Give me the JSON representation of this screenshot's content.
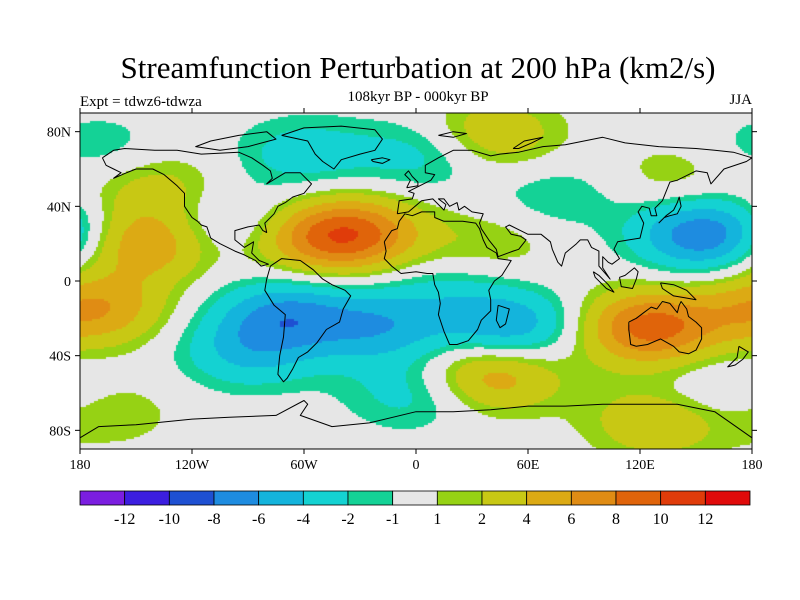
{
  "title": "Streamfunction Perturbation at 200 hPa (km2/s)",
  "subtitle": "108kyr BP - 000kyr BP",
  "experiment": "Expt = tdwz6-tdwza",
  "season": "JJA",
  "map": {
    "projection": "cylindrical equidistant",
    "lon_range": [
      -180,
      180
    ],
    "lat_range": [
      -90,
      90
    ],
    "lon_ticks": [
      {
        "value": -180,
        "label": "180"
      },
      {
        "value": -120,
        "label": "120W"
      },
      {
        "value": -60,
        "label": "60W"
      },
      {
        "value": 0,
        "label": "0"
      },
      {
        "value": 60,
        "label": "60E"
      },
      {
        "value": 120,
        "label": "120E"
      },
      {
        "value": 180,
        "label": "180"
      }
    ],
    "lat_ticks": [
      {
        "value": 80,
        "label": "80N"
      },
      {
        "value": 40,
        "label": "40N"
      },
      {
        "value": 0,
        "label": "0"
      },
      {
        "value": -40,
        "label": "40S"
      },
      {
        "value": -80,
        "label": "80S"
      }
    ]
  },
  "colorbar": {
    "colors": [
      "#7b1ee0",
      "#3c1ee0",
      "#1e50d2",
      "#1e8ce0",
      "#14b4dc",
      "#14d2d2",
      "#14d296",
      "#e6e6e6",
      "#96d214",
      "#c8c814",
      "#dcaa14",
      "#e08c14",
      "#e0640a",
      "#e03c0a",
      "#e00a0a"
    ],
    "boundaries": [
      "-12",
      "-10",
      "-8",
      "-6",
      "-4",
      "-2",
      "-1",
      "1",
      "2",
      "4",
      "6",
      "8",
      "10",
      "12"
    ],
    "levels": [
      -12,
      -10,
      -8,
      -6,
      -4,
      -2,
      -1,
      1,
      2,
      4,
      6,
      8,
      10,
      12
    ]
  },
  "field_centers": [
    {
      "lon": -35,
      "lat": 25,
      "value": 9
    },
    {
      "lon": -65,
      "lat": 22,
      "value": 3
    },
    {
      "lon": -145,
      "lat": 20,
      "value": 6
    },
    {
      "lon": -140,
      "lat": 50,
      "value": 3
    },
    {
      "lon": -172,
      "lat": -15,
      "value": 6
    },
    {
      "lon": -165,
      "lat": -70,
      "value": 2
    },
    {
      "lon": -70,
      "lat": -18,
      "value": -6
    },
    {
      "lon": -20,
      "lat": -25,
      "value": -5
    },
    {
      "lon": 50,
      "lat": -25,
      "value": -6
    },
    {
      "lon": 15,
      "lat": -5,
      "value": -2
    },
    {
      "lon": -60,
      "lat": 68,
      "value": -3
    },
    {
      "lon": 5,
      "lat": 68,
      "value": -3
    },
    {
      "lon": 40,
      "lat": 78,
      "value": 4
    },
    {
      "lon": 75,
      "lat": 45,
      "value": -2
    },
    {
      "lon": 40,
      "lat": 20,
      "value": 2
    },
    {
      "lon": 155,
      "lat": 25,
      "value": -8
    },
    {
      "lon": 140,
      "lat": 55,
      "value": 2
    },
    {
      "lon": 125,
      "lat": -25,
      "value": 9
    },
    {
      "lon": 40,
      "lat": -50,
      "value": 6
    },
    {
      "lon": -90,
      "lat": -38,
      "value": -4
    },
    {
      "lon": 0,
      "lat": -60,
      "value": -3
    },
    {
      "lon": 160,
      "lat": -60,
      "value": -2
    },
    {
      "lon": 130,
      "lat": -75,
      "value": 4
    },
    {
      "lon": -100,
      "lat": 30,
      "value": -3
    },
    {
      "lon": -170,
      "lat": 70,
      "value": -2
    }
  ]
}
